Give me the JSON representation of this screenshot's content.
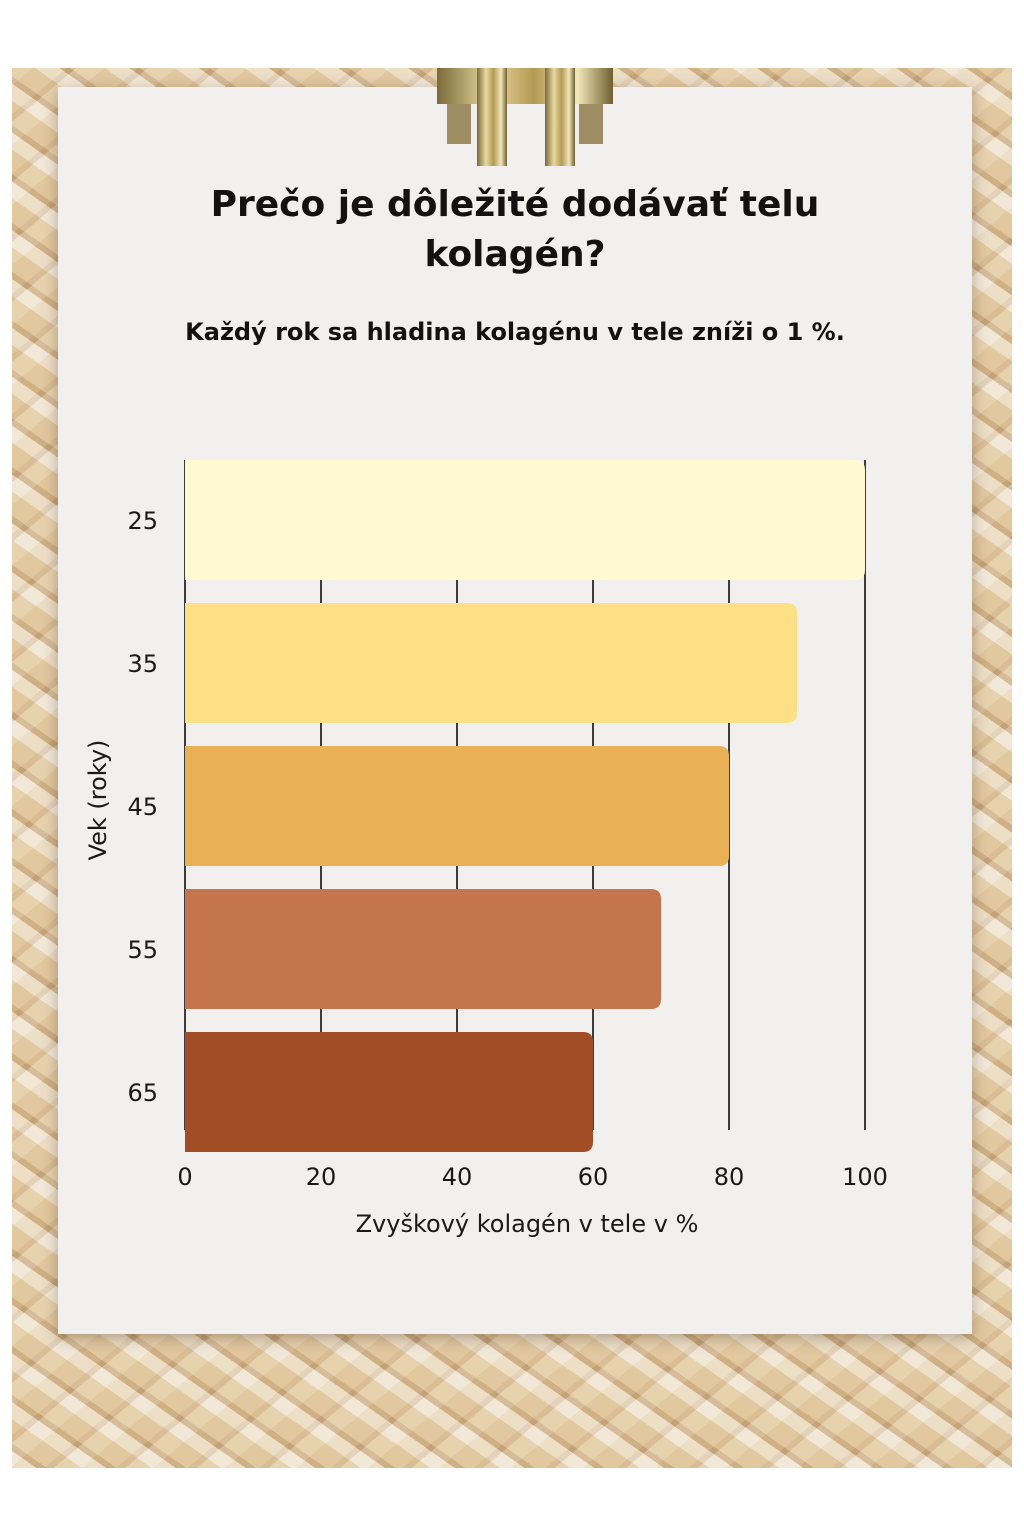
{
  "page": {
    "title_line1": "Prečo je dôležité dodávať telu",
    "title_line2": "kolagén?",
    "subtitle": "Každý rok sa hladina kolagénu v tele zníži o 1 %."
  },
  "chart_data": {
    "type": "bar",
    "orientation": "horizontal",
    "categories": [
      "25",
      "35",
      "45",
      "55",
      "65"
    ],
    "values": [
      100,
      90,
      80,
      70,
      60
    ],
    "bar_colors": [
      "#fffad2",
      "#fde086",
      "#e9b055",
      "#c5754b",
      "#a14e27"
    ],
    "xlabel": "Zvyškový kolagén v tele v %",
    "ylabel": "Vek (roky)",
    "xlim": [
      0,
      100
    ],
    "xticks": [
      "0",
      "20",
      "40",
      "60",
      "80",
      "100"
    ],
    "xtick_values": [
      0,
      20,
      40,
      60,
      80,
      100
    ],
    "grid": true
  }
}
